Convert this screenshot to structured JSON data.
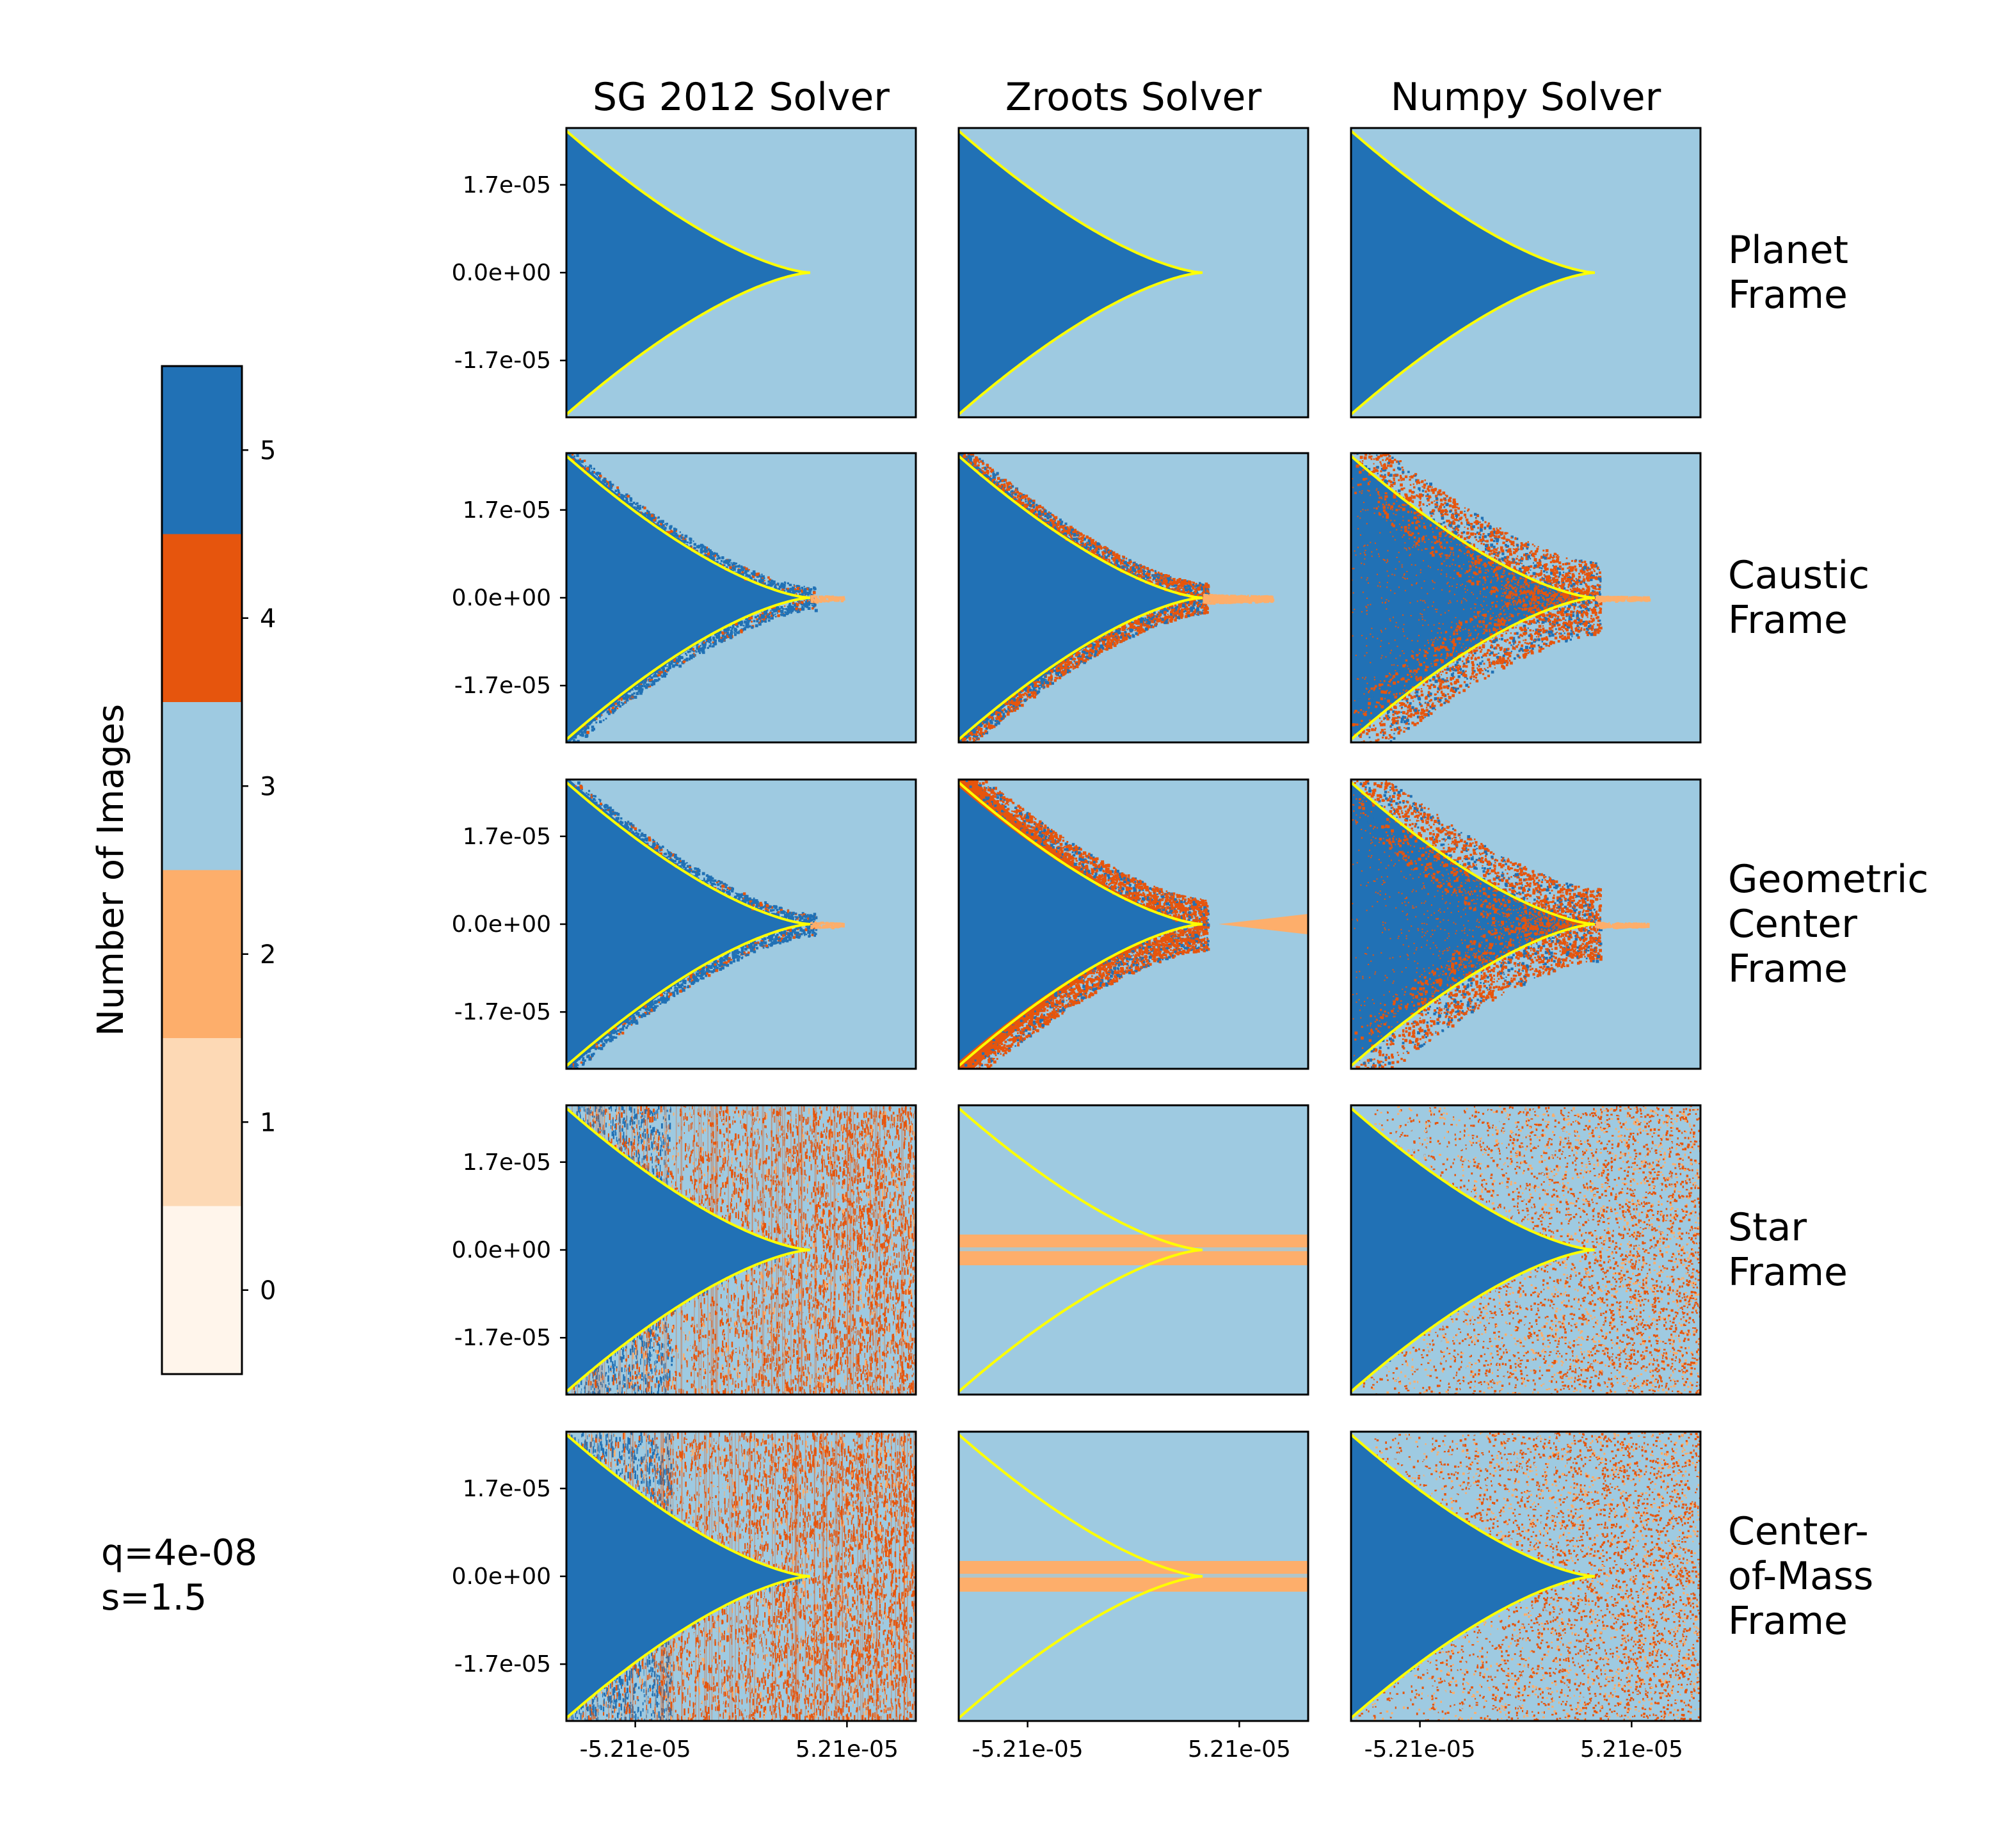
{
  "chart_data": {
    "type": "heatmap",
    "description_source": "grid of 5 frames x 3 solvers, each panel showing number of images over a source plane region with a caustic curve overlay",
    "columns": [
      "SG 2012 Solver",
      "Zroots Solver",
      "Numpy Solver"
    ],
    "rows": [
      {
        "label_lines": [
          "Planet",
          "Frame"
        ]
      },
      {
        "label_lines": [
          "Caustic",
          "Frame"
        ]
      },
      {
        "label_lines": [
          "Geometric",
          "Center",
          "Frame"
        ]
      },
      {
        "label_lines": [
          "Star",
          "Frame"
        ]
      },
      {
        "label_lines": [
          "Center-",
          "of-Mass",
          "Frame"
        ]
      }
    ],
    "x_ticks": [
      "-5.21e-05",
      "5.21e-05"
    ],
    "x_tick_values": [
      -5.21e-05,
      5.21e-05
    ],
    "y_ticks": [
      "1.7e-05",
      "0.0e+00",
      "-1.7e-05"
    ],
    "y_tick_values": [
      1.7e-05,
      0.0,
      -1.7e-05
    ],
    "xlim": [
      -8.6e-05,
      8.6e-05
    ],
    "ylim": [
      -2.8e-05,
      2.8e-05
    ],
    "caustic": {
      "cusp_x": 3.4e-05,
      "color": "#ffff00"
    },
    "colorbar": {
      "label": "Number of Images",
      "levels": [
        0,
        1,
        2,
        3,
        4,
        5
      ],
      "tick_labels": [
        "0",
        "1",
        "2",
        "3",
        "4",
        "5"
      ],
      "colors": [
        "#fff5eb",
        "#fdd9b5",
        "#fdae6b",
        "#9ecae1",
        "#e6550d",
        "#2171b5"
      ]
    },
    "panel_classes": [
      [
        "clean",
        "clean",
        "clean"
      ],
      [
        "light_scatter",
        "medium_scatter",
        "numpy_scatter"
      ],
      [
        "light_scatter",
        "heavy_scatter",
        "numpy_scatter"
      ],
      [
        "sg_noise",
        "band",
        "numpy_noise"
      ],
      [
        "sg_noise",
        "band",
        "numpy_noise"
      ]
    ]
  },
  "params": {
    "q_text": "q=4e-08",
    "s_text": "s=1.5"
  }
}
